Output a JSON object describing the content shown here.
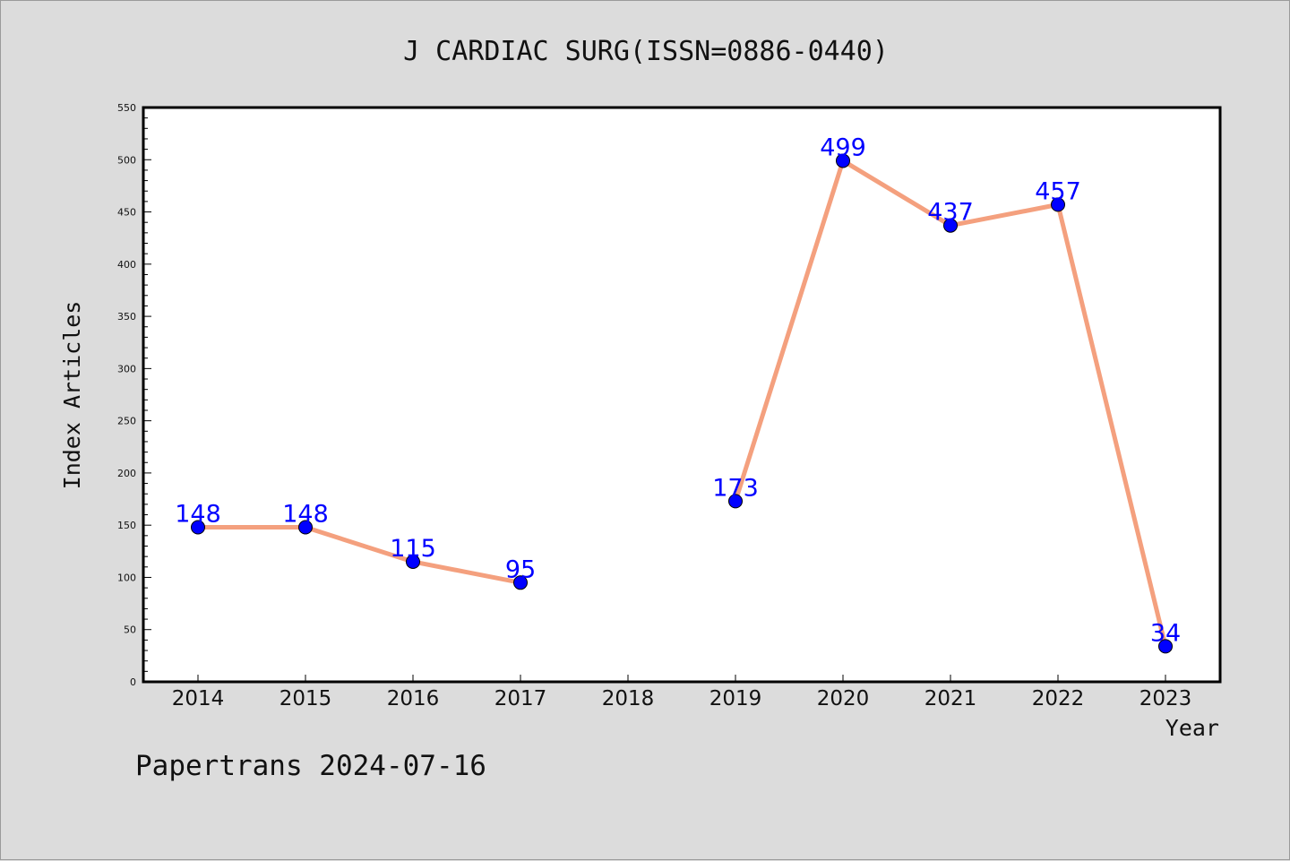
{
  "footer": {
    "text": "Papertrans 2024-07-16"
  },
  "colors": {
    "background": "#dcdcdc",
    "plot_area": "#ffffff",
    "line": "#f4a07e",
    "marker": "#0000ff",
    "data_label": "#0000ff"
  },
  "chart_data": {
    "type": "line",
    "title": "J CARDIAC SURG(ISSN=0886-0440)",
    "xlabel": "Year",
    "ylabel": "Index Articles",
    "ylim": [
      0,
      550
    ],
    "y_ticks": [
      0,
      50,
      100,
      150,
      200,
      250,
      300,
      350,
      400,
      450,
      500,
      550
    ],
    "x_ticks": [
      "2014",
      "2015",
      "2016",
      "2017",
      "2018",
      "2019",
      "2020",
      "2021",
      "2022",
      "2023"
    ],
    "grid": false,
    "series": [
      {
        "x": [
          "2014",
          "2015",
          "2016",
          "2017",
          "2018",
          "2019",
          "2020",
          "2021",
          "2022",
          "2023"
        ],
        "values": [
          148,
          148,
          115,
          95,
          null,
          173,
          499,
          437,
          457,
          34
        ]
      }
    ]
  }
}
